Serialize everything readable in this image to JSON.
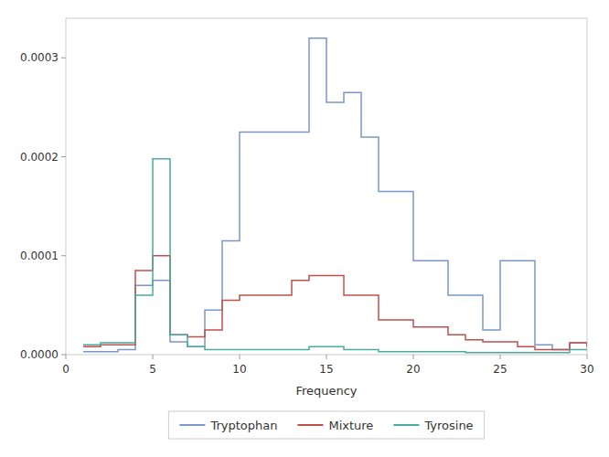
{
  "chart_data": {
    "type": "line",
    "line_style": "step",
    "title": "",
    "xlabel": "Frequency",
    "x": [
      1,
      2,
      3,
      4,
      5,
      6,
      7,
      8,
      9,
      10,
      11,
      12,
      13,
      14,
      15,
      16,
      17,
      18,
      19,
      20,
      21,
      22,
      23,
      24,
      25,
      26,
      27,
      28,
      29,
      30
    ],
    "series": [
      {
        "name": "Tryptophan",
        "color": "#7b96c8",
        "values": [
          3e-06,
          3e-06,
          5e-06,
          7e-05,
          7.5e-05,
          1.3e-05,
          8e-06,
          4.5e-05,
          0.000115,
          0.000225,
          0.000225,
          0.000225,
          0.000225,
          0.00032,
          0.000255,
          0.000265,
          0.00022,
          0.000165,
          0.000165,
          9.5e-05,
          9.5e-05,
          6e-05,
          6e-05,
          2.5e-05,
          9.5e-05,
          9.5e-05,
          1e-05,
          5e-06,
          1.2e-05,
          8e-06
        ]
      },
      {
        "name": "Mixture",
        "color": "#c0504d",
        "values": [
          8e-06,
          1e-05,
          1e-05,
          8.5e-05,
          0.0001,
          2e-05,
          1.8e-05,
          2.5e-05,
          5.5e-05,
          6e-05,
          6e-05,
          6e-05,
          7.5e-05,
          8e-05,
          8e-05,
          6e-05,
          6e-05,
          3.5e-05,
          3.5e-05,
          2.8e-05,
          2.8e-05,
          2e-05,
          1.5e-05,
          1.3e-05,
          1.3e-05,
          8e-06,
          5e-06,
          5e-06,
          1.2e-05,
          8e-06
        ]
      },
      {
        "name": "Tyrosine",
        "color": "#4aaba0",
        "values": [
          1e-05,
          1.2e-05,
          1.2e-05,
          6e-05,
          0.000198,
          2e-05,
          8e-06,
          5e-06,
          5e-06,
          5e-06,
          5e-06,
          5e-06,
          5e-06,
          8e-06,
          8e-06,
          5e-06,
          5e-06,
          3e-06,
          3e-06,
          3e-06,
          3e-06,
          3e-06,
          2e-06,
          2e-06,
          2e-06,
          2e-06,
          2e-06,
          2e-06,
          5e-06,
          5e-06
        ]
      }
    ],
    "xlim": [
      0,
      30
    ],
    "ylim": [
      0,
      0.00034
    ],
    "xticks": [
      0,
      5,
      10,
      15,
      20,
      25,
      30
    ],
    "yticks": [
      {
        "value": 0,
        "label": "0.0000"
      },
      0.0001,
      0.0002,
      0.0003
    ],
    "grid": false,
    "legend": "bottom"
  }
}
